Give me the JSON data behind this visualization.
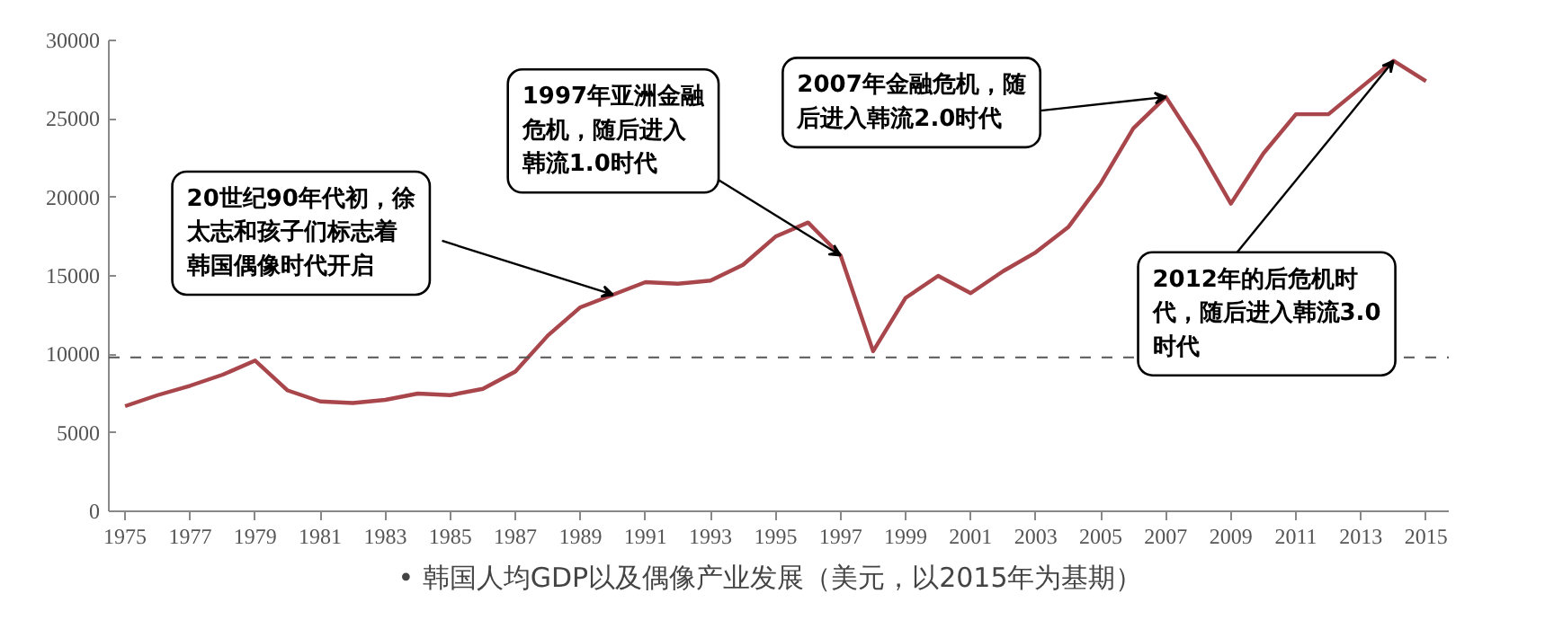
{
  "chart_data": {
    "type": "line",
    "x": [
      1975,
      1976,
      1977,
      1978,
      1979,
      1980,
      1981,
      1982,
      1983,
      1984,
      1985,
      1986,
      1987,
      1988,
      1989,
      1990,
      1991,
      1992,
      1993,
      1994,
      1995,
      1996,
      1997,
      1998,
      1999,
      2000,
      2001,
      2002,
      2003,
      2004,
      2005,
      2006,
      2007,
      2008,
      2009,
      2010,
      2011,
      2012,
      2013,
      2014,
      2015
    ],
    "series": [
      {
        "color": "#a8464c",
        "values": [
          6700,
          7400,
          8000,
          8700,
          9600,
          7700,
          7000,
          6900,
          7100,
          7500,
          7400,
          7800,
          8900,
          11200,
          13000,
          13800,
          14600,
          14500,
          14700,
          15700,
          17500,
          18400,
          16300,
          10200,
          13600,
          15000,
          13900,
          15300,
          16500,
          18100,
          20900,
          24400,
          26400,
          23200,
          19600,
          22800,
          25300,
          25300,
          27000,
          28700,
          27400
        ]
      }
    ],
    "xlim": [
      1974.5,
      2015.7
    ],
    "ylim": [
      0,
      30000
    ],
    "xticks": [
      1975,
      1977,
      1979,
      1981,
      1983,
      1985,
      1987,
      1989,
      1991,
      1993,
      1995,
      1997,
      1999,
      2001,
      2003,
      2005,
      2007,
      2009,
      2011,
      2013,
      2015
    ],
    "yticks": [
      0,
      5000,
      10000,
      15000,
      20000,
      25000,
      30000
    ],
    "grid": false,
    "marker": "none",
    "line_style": "solid",
    "ref_lines": [
      {
        "axis": "y",
        "value": 9800,
        "color": "#555555",
        "line_style": "dashed"
      }
    ],
    "annotations": [
      {
        "text": "20世纪90年代初，徐太志和孩子们标志着韩国偶像时代开启",
        "x": 1990,
        "y": 13800
      },
      {
        "text": "1997年亚洲金融危机，随后进入韩流1.0时代",
        "x": 1997,
        "y": 16300
      },
      {
        "text": "2007年金融危机，随后进入韩流2.0时代",
        "x": 2007,
        "y": 26400
      },
      {
        "text": "2012年的后危机时代，随后进入韩流3.0时代",
        "x": 2014,
        "y": 28700
      },
      "•   韩国人均GDP以及偶像产业发展（美元，以2015年为基期）"
    ]
  }
}
